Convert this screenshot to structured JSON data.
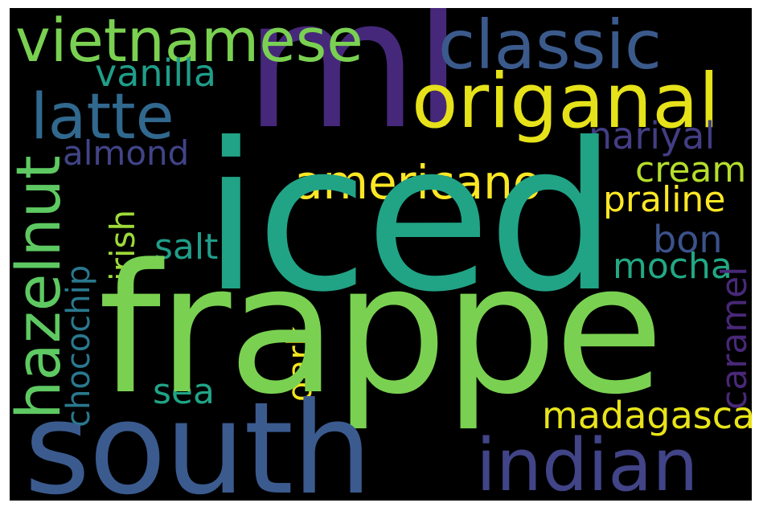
{
  "words": {
    "iced": "iced",
    "frappe": "frappe",
    "south": "south",
    "ml": "ml",
    "origanal": "origanal",
    "classic": "classic",
    "vietnamese": "vietnamese",
    "indian": "indian",
    "latte": "latte",
    "hazelnut": "hazelnut",
    "americano": "americano",
    "madagascar": "madagascar",
    "vanilla": "vanilla",
    "almond": "almond",
    "nariyal": "nariyal",
    "cream": "cream",
    "praline": "praline",
    "bon": "bon",
    "mocha": "mocha",
    "caramel": "caramel",
    "salt": "salt",
    "irish": "irish",
    "chocochip": "chocochip",
    "sea": "sea",
    "dark": "dark"
  },
  "colors": {
    "background": "#000000",
    "iced": "#21a386",
    "frappe": "#7ad151",
    "south": "#3b5b8f",
    "ml": "#46287a",
    "origanal": "#e6e21a",
    "classic": "#3b5a8c",
    "vietnamese": "#7ad151",
    "indian": "#414487",
    "latte": "#31688e",
    "hazelnut": "#5ec962",
    "americano": "#fde725",
    "madagascar": "#e8e419",
    "vanilla": "#1f9e89",
    "almond": "#414487",
    "nariyal": "#433d84",
    "cream": "#b5de2b",
    "praline": "#fde725",
    "bon": "#3b528b",
    "mocha": "#22a884",
    "caramel": "#482878",
    "salt": "#1f9e89",
    "irish": "#9fda3a",
    "chocochip": "#2a788e",
    "sea": "#20a486",
    "dark": "#f2e51d"
  }
}
